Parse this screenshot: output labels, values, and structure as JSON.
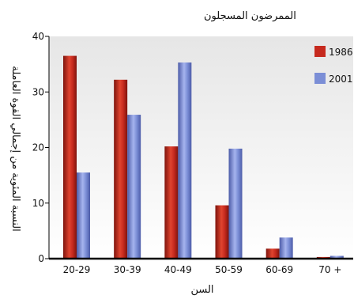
{
  "chart_data": {
    "type": "bar",
    "title": "الممرضون المسجلون",
    "xlabel": "السن",
    "ylabel": "النسبة المئوية من إجمالي القوة العاملة",
    "categories": [
      "20-29",
      "30-39",
      "40-49",
      "50-59",
      "60-69",
      "70 +"
    ],
    "series": [
      {
        "name": "1986",
        "values": [
          36.5,
          32.2,
          20.2,
          9.6,
          1.8,
          0.3
        ],
        "color": "#c62a1e"
      },
      {
        "name": "2001",
        "values": [
          15.5,
          25.9,
          35.3,
          19.8,
          3.8,
          0.5
        ],
        "color": "#7b8ed6"
      }
    ],
    "y_ticks": [
      0,
      10,
      20,
      30,
      40
    ],
    "ylim": [
      0,
      40
    ],
    "grid": false,
    "legend_position": "top-right"
  }
}
